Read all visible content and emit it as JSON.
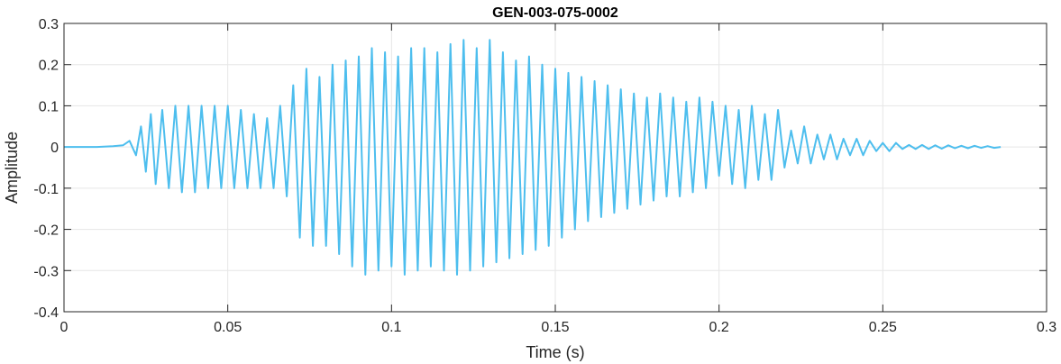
{
  "chart_data": {
    "type": "line",
    "title": "GEN-003-075-0002",
    "xlabel": "Time (s)",
    "ylabel": "Amplitude",
    "xlim": [
      0,
      0.3
    ],
    "ylim": [
      -0.4,
      0.3
    ],
    "xticks": [
      0,
      0.05,
      0.1,
      0.15,
      0.2,
      0.25,
      0.3
    ],
    "xtick_labels": [
      "0",
      "0.05",
      "0.1",
      "0.15",
      "0.2",
      "0.25",
      "0.3"
    ],
    "yticks": [
      -0.4,
      -0.3,
      -0.2,
      -0.1,
      0,
      0.1,
      0.2,
      0.3
    ],
    "ytick_labels": [
      "-0.4",
      "-0.3",
      "-0.2",
      "-0.1",
      "0",
      "0.1",
      "0.2",
      "0.3"
    ],
    "grid": true,
    "box": true,
    "colors": {
      "line": "#4DBEEE",
      "axes": "#262626",
      "grid": "#e6e6e6"
    },
    "series": [
      {
        "x": [
          0,
          0.005,
          0.01,
          0.015,
          0.018,
          0.02,
          0.022,
          0.0235,
          0.025,
          0.0265,
          0.028,
          0.03,
          0.032,
          0.034,
          0.036,
          0.038,
          0.04,
          0.042,
          0.044,
          0.046,
          0.048,
          0.05,
          0.052,
          0.054,
          0.056,
          0.058,
          0.06,
          0.062,
          0.064,
          0.066,
          0.068,
          0.07,
          0.072,
          0.074,
          0.076,
          0.078,
          0.08,
          0.082,
          0.084,
          0.086,
          0.088,
          0.09,
          0.092,
          0.094,
          0.096,
          0.098,
          0.1,
          0.102,
          0.104,
          0.106,
          0.108,
          0.11,
          0.112,
          0.114,
          0.116,
          0.118,
          0.12,
          0.122,
          0.124,
          0.126,
          0.128,
          0.13,
          0.132,
          0.134,
          0.136,
          0.138,
          0.14,
          0.142,
          0.144,
          0.146,
          0.148,
          0.15,
          0.152,
          0.154,
          0.156,
          0.158,
          0.16,
          0.162,
          0.164,
          0.166,
          0.168,
          0.17,
          0.172,
          0.174,
          0.176,
          0.178,
          0.18,
          0.182,
          0.184,
          0.186,
          0.188,
          0.19,
          0.192,
          0.194,
          0.196,
          0.198,
          0.2,
          0.202,
          0.204,
          0.206,
          0.208,
          0.21,
          0.212,
          0.214,
          0.216,
          0.218,
          0.22,
          0.222,
          0.224,
          0.226,
          0.228,
          0.23,
          0.232,
          0.234,
          0.236,
          0.238,
          0.24,
          0.242,
          0.244,
          0.246,
          0.248,
          0.25,
          0.252,
          0.254,
          0.256,
          0.258,
          0.26,
          0.262,
          0.264,
          0.266,
          0.268,
          0.27,
          0.272,
          0.274,
          0.276,
          0.278,
          0.28,
          0.282,
          0.284,
          0.286
        ],
        "y": [
          0,
          0,
          0,
          0.002,
          0.004,
          0.015,
          -0.02,
          0.05,
          -0.06,
          0.08,
          -0.09,
          0.09,
          -0.1,
          0.1,
          -0.11,
          0.1,
          -0.11,
          0.1,
          -0.1,
          0.1,
          -0.1,
          0.1,
          -0.1,
          0.09,
          -0.1,
          0.08,
          -0.1,
          0.07,
          -0.1,
          0.1,
          -0.12,
          0.15,
          -0.22,
          0.19,
          -0.24,
          0.17,
          -0.24,
          0.2,
          -0.26,
          0.21,
          -0.29,
          0.22,
          -0.31,
          0.24,
          -0.3,
          0.23,
          -0.29,
          0.22,
          -0.31,
          0.24,
          -0.3,
          0.24,
          -0.29,
          0.23,
          -0.3,
          0.25,
          -0.31,
          0.26,
          -0.3,
          0.24,
          -0.29,
          0.26,
          -0.28,
          0.23,
          -0.27,
          0.21,
          -0.26,
          0.22,
          -0.25,
          0.2,
          -0.24,
          0.19,
          -0.22,
          0.18,
          -0.2,
          0.17,
          -0.18,
          0.16,
          -0.17,
          0.15,
          -0.16,
          0.14,
          -0.15,
          0.13,
          -0.14,
          0.12,
          -0.13,
          0.13,
          -0.12,
          0.12,
          -0.12,
          0.11,
          -0.11,
          0.12,
          -0.1,
          0.11,
          -0.07,
          0.1,
          -0.09,
          0.09,
          -0.1,
          0.1,
          -0.08,
          0.08,
          -0.08,
          0.09,
          -0.05,
          0.04,
          -0.04,
          0.05,
          -0.04,
          0.03,
          -0.03,
          0.03,
          -0.03,
          0.02,
          -0.02,
          0.02,
          -0.02,
          0.015,
          -0.01,
          0.01,
          -0.01,
          0.01,
          -0.005,
          0.005,
          -0.005,
          0.005,
          -0.005,
          0.004,
          -0.004,
          0.004,
          -0.003,
          0.003,
          -0.003,
          0.003,
          -0.002,
          0.002,
          -0.002,
          0
        ]
      }
    ]
  }
}
